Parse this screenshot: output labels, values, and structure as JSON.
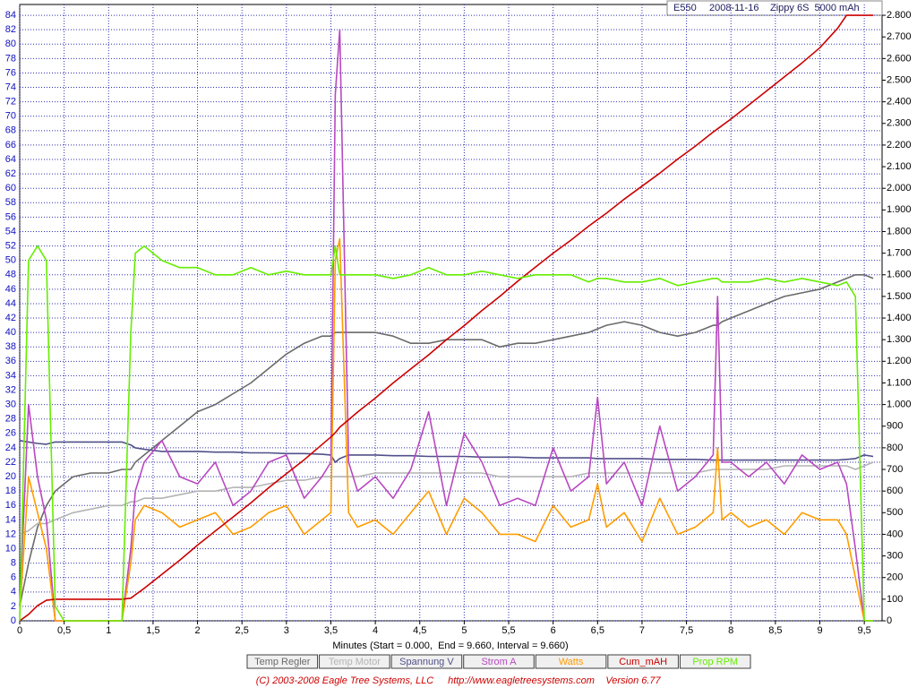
{
  "chart_data": {
    "type": "line",
    "title": "E550",
    "date": "2008-11-16",
    "subtitle": "Zippy 6S  5000 mAh",
    "x_label": "Minutes (Start = 0.000,  End = 9.660, Interval = 9.660)",
    "copyright": "(C) 2003-2008 Eagle Tree Systems, LLC",
    "url": "http://www.eagletreesystems.com",
    "version": "Version 6.77",
    "grid": true,
    "xlim": [
      0,
      9.7
    ],
    "ylim": [
      0,
      85.5
    ],
    "y2lim": [
      0,
      2850
    ],
    "xticks": [
      0,
      {
        "value": 0.5,
        "label": "0,5"
      },
      1,
      {
        "value": 1.5,
        "label": "1,5"
      },
      2,
      {
        "value": 2.5,
        "label": "2,5"
      },
      3,
      {
        "value": 3.5,
        "label": "3,5"
      },
      4,
      {
        "value": 4.5,
        "label": "4,5"
      },
      5,
      {
        "value": 5.5,
        "label": "5,5"
      },
      6,
      {
        "value": 6.5,
        "label": "6,5"
      },
      7,
      {
        "value": 7.5,
        "label": "7,5"
      },
      8,
      {
        "value": 8.5,
        "label": "8,5"
      },
      9,
      {
        "value": 9.5,
        "label": "9,5"
      }
    ],
    "yticks": [
      0,
      2,
      4,
      6,
      8,
      10,
      12,
      14,
      16,
      18,
      20,
      22,
      24,
      26,
      28,
      30,
      32,
      34,
      36,
      38,
      40,
      42,
      44,
      46,
      48,
      50,
      52,
      54,
      56,
      58,
      60,
      62,
      64,
      66,
      68,
      70,
      72,
      74,
      76,
      78,
      80,
      82,
      84
    ],
    "y2ticks": [
      0,
      100,
      200,
      300,
      400,
      500,
      600,
      700,
      800,
      900,
      {
        "value": 1000,
        "label": "1.000"
      },
      {
        "value": 1100,
        "label": "1.100"
      },
      {
        "value": 1200,
        "label": "1.200"
      },
      {
        "value": 1300,
        "label": "1.300"
      },
      {
        "value": 1400,
        "label": "1.400"
      },
      {
        "value": 1500,
        "label": "1.500"
      },
      {
        "value": 1600,
        "label": "1.600"
      },
      {
        "value": 1700,
        "label": "1.700"
      },
      {
        "value": 1800,
        "label": "1.800"
      },
      {
        "value": 1900,
        "label": "1.900"
      },
      {
        "value": 2000,
        "label": "2.000"
      },
      {
        "value": 2100,
        "label": "2.100"
      },
      {
        "value": 2200,
        "label": "2.200"
      },
      {
        "value": 2300,
        "label": "2.300"
      },
      {
        "value": 2400,
        "label": "2.400"
      },
      {
        "value": 2500,
        "label": "2.500"
      },
      {
        "value": 2600,
        "label": "2.600"
      },
      {
        "value": 2700,
        "label": "2.700"
      },
      {
        "value": 2800,
        "label": "2.800"
      }
    ],
    "x": [
      0,
      0.1,
      0.2,
      0.3,
      0.4,
      0.5,
      0.6,
      0.8,
      1.0,
      1.15,
      1.25,
      1.3,
      1.4,
      1.6,
      1.8,
      2.0,
      2.2,
      2.4,
      2.6,
      2.8,
      3.0,
      3.2,
      3.4,
      3.5,
      3.55,
      3.6,
      3.7,
      3.8,
      4.0,
      4.2,
      4.4,
      4.6,
      4.8,
      5.0,
      5.2,
      5.4,
      5.6,
      5.8,
      6.0,
      6.2,
      6.4,
      6.5,
      6.6,
      6.8,
      7.0,
      7.2,
      7.4,
      7.6,
      7.8,
      7.85,
      7.9,
      8.0,
      8.2,
      8.4,
      8.6,
      8.8,
      9.0,
      9.2,
      9.3,
      9.4,
      9.5,
      9.6
    ],
    "series": [
      {
        "name": "Temp Regler",
        "color": "#6a6a6a",
        "values": [
          2,
          8,
          13,
          16,
          18,
          19,
          20,
          20.5,
          20.5,
          21,
          21,
          22,
          23,
          25,
          27,
          29,
          30,
          31.5,
          33,
          35,
          37,
          38.5,
          39.5,
          39.5,
          40,
          40,
          40,
          40,
          40,
          39.5,
          38.5,
          38.5,
          39,
          39,
          39,
          38,
          38.5,
          38.5,
          39,
          39.5,
          40,
          40.5,
          41,
          41.5,
          41,
          40,
          39.5,
          40,
          41,
          41,
          41.5,
          42,
          43,
          44,
          45,
          45.5,
          46,
          47,
          47.5,
          48,
          48,
          47.5
        ]
      },
      {
        "name": "Temp Motor",
        "color": "#b4b4b4",
        "values": [
          12,
          12.5,
          13.5,
          13.5,
          14,
          14.5,
          15,
          15.5,
          16,
          16,
          16.5,
          16.5,
          17,
          17,
          17.5,
          18,
          18,
          18.5,
          18.5,
          19,
          19.5,
          19.5,
          20,
          20,
          20,
          20,
          20,
          20,
          20.5,
          20.5,
          20.5,
          20.5,
          20.5,
          20.5,
          20.5,
          20,
          20,
          20,
          20,
          20,
          20.5,
          20.5,
          20.5,
          20.5,
          20.5,
          20.5,
          20.5,
          20.5,
          21,
          21,
          21,
          21,
          21,
          21,
          21.5,
          21.5,
          21.5,
          21.5,
          21.5,
          21,
          21.5,
          22
        ]
      },
      {
        "name": "Spannung V",
        "color": "#50508a",
        "values": [
          25,
          24.8,
          24.6,
          24.5,
          24.8,
          24.8,
          24.8,
          24.8,
          24.8,
          24.8,
          24.4,
          24,
          23.8,
          23.5,
          23.5,
          23.5,
          23.4,
          23.4,
          23.3,
          23.3,
          23.2,
          23.2,
          23.1,
          23,
          22,
          22.5,
          23,
          23,
          23,
          22.9,
          22.9,
          22.8,
          22.8,
          22.8,
          22.7,
          22.7,
          22.7,
          22.6,
          22.6,
          22.6,
          22.6,
          22.5,
          22.5,
          22.5,
          22.5,
          22.4,
          22.4,
          22.4,
          22.3,
          22.3,
          22.3,
          22.3,
          22.3,
          22.3,
          22.3,
          22.3,
          22.3,
          22.3,
          22.4,
          22.5,
          23,
          22.8
        ]
      },
      {
        "name": "Strom A",
        "color": "#b848c0",
        "values": [
          2,
          30,
          20,
          14,
          0,
          0,
          0,
          0,
          0,
          0,
          10,
          18,
          22,
          25,
          20,
          19,
          22,
          16,
          18,
          22,
          23,
          17,
          20,
          22,
          73,
          82,
          22,
          18,
          20,
          17,
          21,
          29,
          16,
          26,
          22,
          16,
          17,
          16,
          24,
          18,
          20,
          31,
          19,
          22,
          16,
          27,
          18,
          20,
          23,
          45,
          22,
          22,
          20,
          22,
          19,
          23,
          21,
          22,
          19,
          10,
          0,
          0
        ]
      },
      {
        "name": "Watts",
        "color": "#ff9c00",
        "values": [
          1,
          20,
          15,
          10,
          0,
          0,
          0,
          0,
          0,
          0,
          8,
          14,
          16,
          15,
          13,
          14,
          15,
          12,
          13,
          15,
          16,
          12,
          14,
          15,
          50,
          53,
          15,
          13,
          14,
          12,
          15,
          18,
          12,
          17,
          15,
          12,
          12,
          11,
          16,
          13,
          14,
          19,
          13,
          15,
          11,
          17,
          12,
          13,
          15,
          24,
          14,
          15,
          13,
          14,
          12,
          15,
          14,
          14,
          12,
          6,
          0,
          0
        ]
      },
      {
        "name": "Cum_mAH",
        "color": "#cc0000",
        "axis": "y2",
        "values": [
          0,
          30,
          70,
          95,
          100,
          100,
          100,
          100,
          100,
          100,
          105,
          120,
          150,
          215,
          280,
          350,
          415,
          480,
          545,
          615,
          680,
          745,
          815,
          850,
          870,
          895,
          930,
          965,
          1030,
          1100,
          1165,
          1230,
          1300,
          1365,
          1435,
          1500,
          1570,
          1635,
          1700,
          1760,
          1825,
          1855,
          1885,
          1950,
          2010,
          2070,
          2135,
          2195,
          2260,
          2275,
          2290,
          2320,
          2385,
          2450,
          2515,
          2580,
          2650,
          2740,
          2800,
          2800,
          2800,
          2800
        ]
      },
      {
        "name": "Prop RPM",
        "color": "#66ee00",
        "values": [
          0,
          50,
          52,
          50,
          2,
          0,
          0,
          0,
          0,
          0,
          40,
          51,
          52,
          50,
          49,
          49,
          48,
          48,
          49,
          48,
          48.5,
          48,
          48,
          48,
          52,
          48,
          48,
          48,
          48,
          47.5,
          48,
          49,
          48,
          48,
          48.5,
          48,
          47.5,
          48,
          48,
          48,
          47,
          47.5,
          47.5,
          47,
          47,
          47.5,
          46.5,
          47,
          47.5,
          47.5,
          47,
          47,
          47,
          47.5,
          47,
          47.5,
          47,
          46.5,
          47,
          45,
          0,
          0
        ]
      }
    ]
  }
}
